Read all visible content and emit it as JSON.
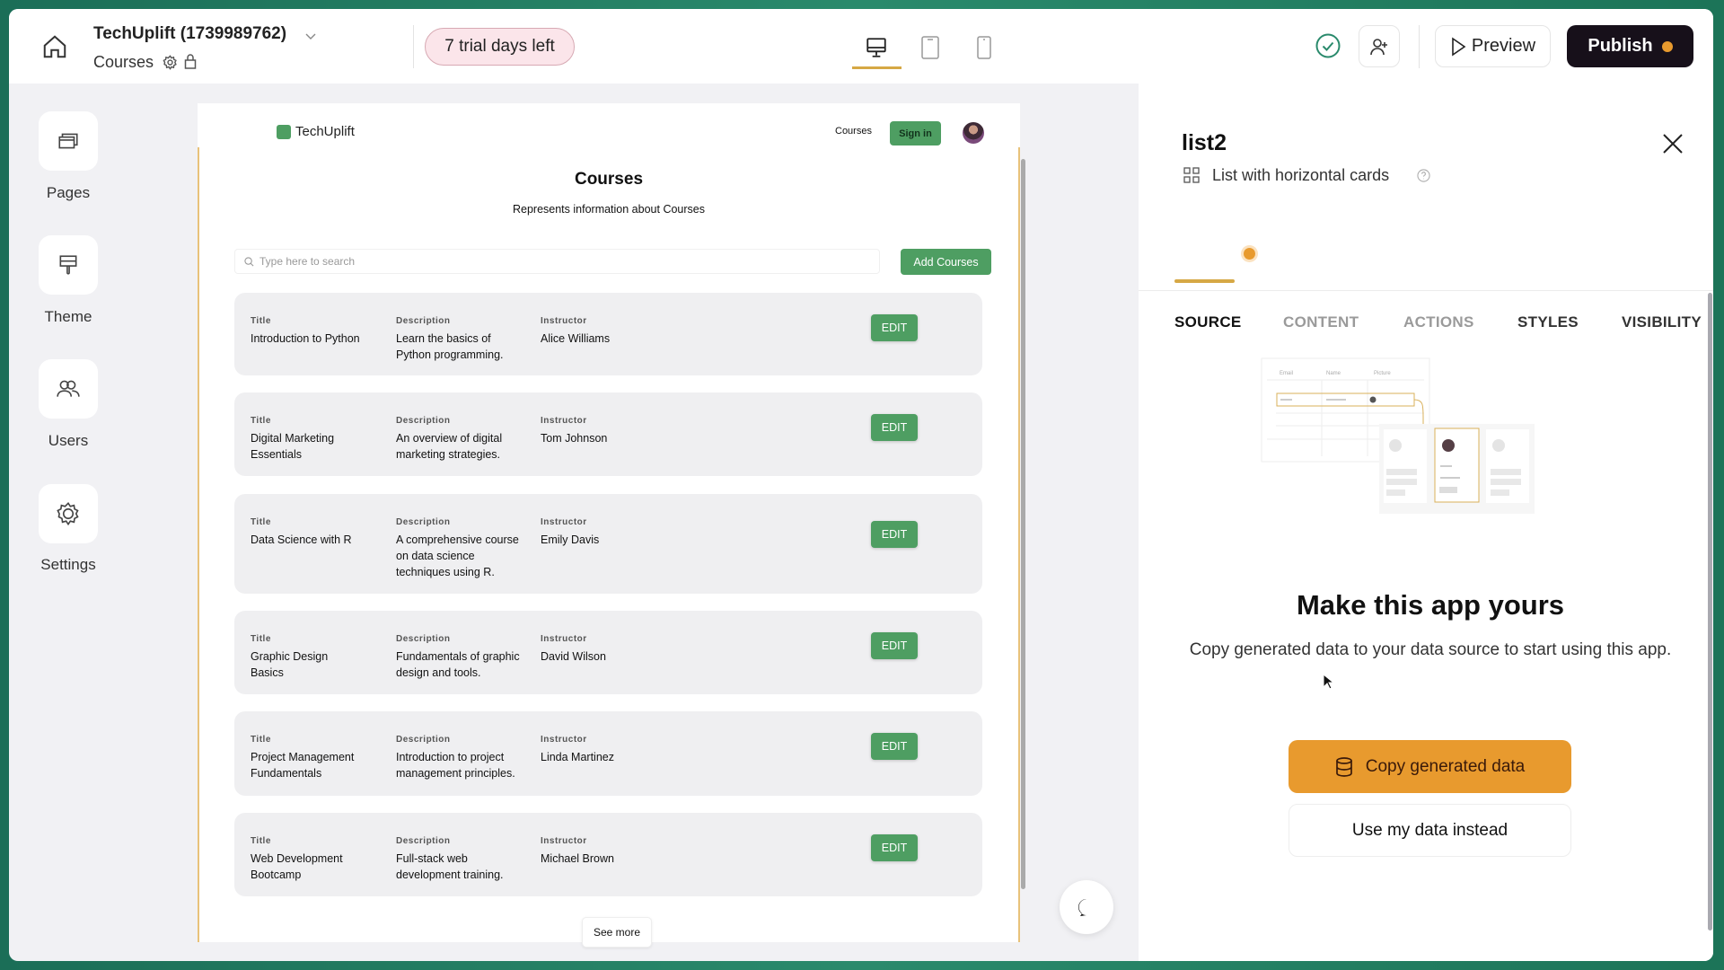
{
  "topbar": {
    "app_title": "TechUplift (1739989762)",
    "page_name": "Courses",
    "trial_badge": "7 trial days left",
    "preview_label": "Preview",
    "publish_label": "Publish",
    "accent": "#e89a2e"
  },
  "sidebar": {
    "items": [
      {
        "label": "Pages",
        "icon": "pages-icon"
      },
      {
        "label": "Theme",
        "icon": "paint-roller-icon"
      },
      {
        "label": "Users",
        "icon": "users-icon"
      },
      {
        "label": "Settings",
        "icon": "gear-icon"
      }
    ]
  },
  "preview": {
    "brand": "TechUplift",
    "nav_courses": "Courses",
    "sign_in": "Sign in",
    "title": "Courses",
    "subtitle": "Represents information about Courses",
    "search_placeholder": "Type here to search",
    "add_button": "Add Courses",
    "labels": {
      "title": "Title",
      "description": "Description",
      "instructor": "Instructor"
    },
    "edit_label": "EDIT",
    "see_more": "See more",
    "primary_color": "#4e9e62",
    "courses": [
      {
        "title": "Introduction to Python",
        "description": "Learn the basics of Python programming.",
        "instructor": "Alice Williams"
      },
      {
        "title": "Digital Marketing Essentials",
        "description": "An overview of digital marketing strategies.",
        "instructor": "Tom Johnson"
      },
      {
        "title": "Data Science with R",
        "description": "A comprehensive course on data science techniques using R.",
        "instructor": "Emily Davis"
      },
      {
        "title": "Graphic Design Basics",
        "description": "Fundamentals of graphic design and tools.",
        "instructor": "David Wilson"
      },
      {
        "title": "Project Management Fundamentals",
        "description": "Introduction to project management principles.",
        "instructor": "Linda Martinez"
      },
      {
        "title": "Web Development Bootcamp",
        "description": "Full-stack web development training.",
        "instructor": "Michael Brown"
      }
    ]
  },
  "panel": {
    "component_name": "list2",
    "component_type": "List with horizontal cards",
    "tabs": [
      {
        "label": "SOURCE",
        "active": true
      },
      {
        "label": "CONTENT",
        "active": false
      },
      {
        "label": "ACTIONS",
        "active": false
      },
      {
        "label": "STYLES",
        "active": false
      },
      {
        "label": "VISIBILITY",
        "active": false
      }
    ],
    "illustration": {
      "columns": [
        "Email",
        "Name",
        "Picture"
      ]
    },
    "heading": "Make this app yours",
    "description": "Copy generated data to your data source to start using this app.",
    "copy_button": "Copy generated data",
    "use_my_data_button": "Use my data instead"
  }
}
